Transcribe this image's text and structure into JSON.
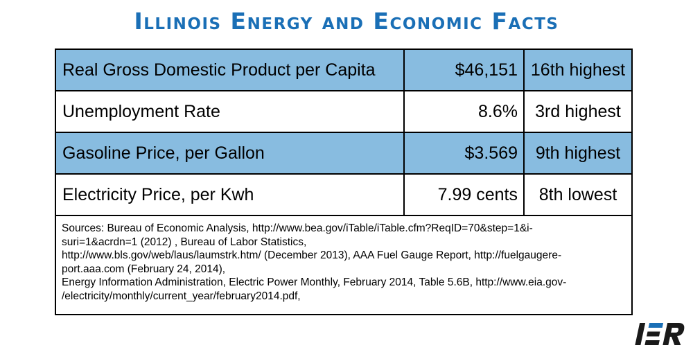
{
  "title": "Illinois Energy and Economic Facts",
  "rows": [
    {
      "label": "Real Gross Domestic Product per Capita",
      "value": "$46,151",
      "rank": "16th highest",
      "highlight": true
    },
    {
      "label": "Unemployment Rate",
      "value": "8.6%",
      "rank": "3rd highest",
      "highlight": false
    },
    {
      "label": "Gasoline Price, per Gallon",
      "value": "$3.569",
      "rank": "9th highest",
      "highlight": true
    },
    {
      "label": "Electricity Price, per Kwh",
      "value": "7.99 cents",
      "rank": "8th lowest",
      "highlight": false
    }
  ],
  "sources": [
    "Sources: Bureau of Economic Analysis, http://www.bea.gov/iTable/iTable.cfm?ReqID=70&step=1&i-",
    "suri=1&acrdn=1 (2012) , Bureau of Labor Statistics,",
    "http://www.bls.gov/web/laus/laumstrk.htm/ (December 2013), AAA Fuel Gauge Report, http://fuelgaugere-",
    "port.aaa.com  (February 24, 2014),",
    "Energy Information Administration, Electric Power Monthly, February 2014, Table 5.6B, http://www.eia.gov-",
    "/electricity/monthly/current_year/february2014.pdf,"
  ],
  "logo": {
    "text": "IER",
    "color": "#1a1a1a",
    "accent": "#1a6fb6"
  },
  "colors": {
    "title": "#1a6fb6",
    "highlight_row": "#88bce0"
  }
}
